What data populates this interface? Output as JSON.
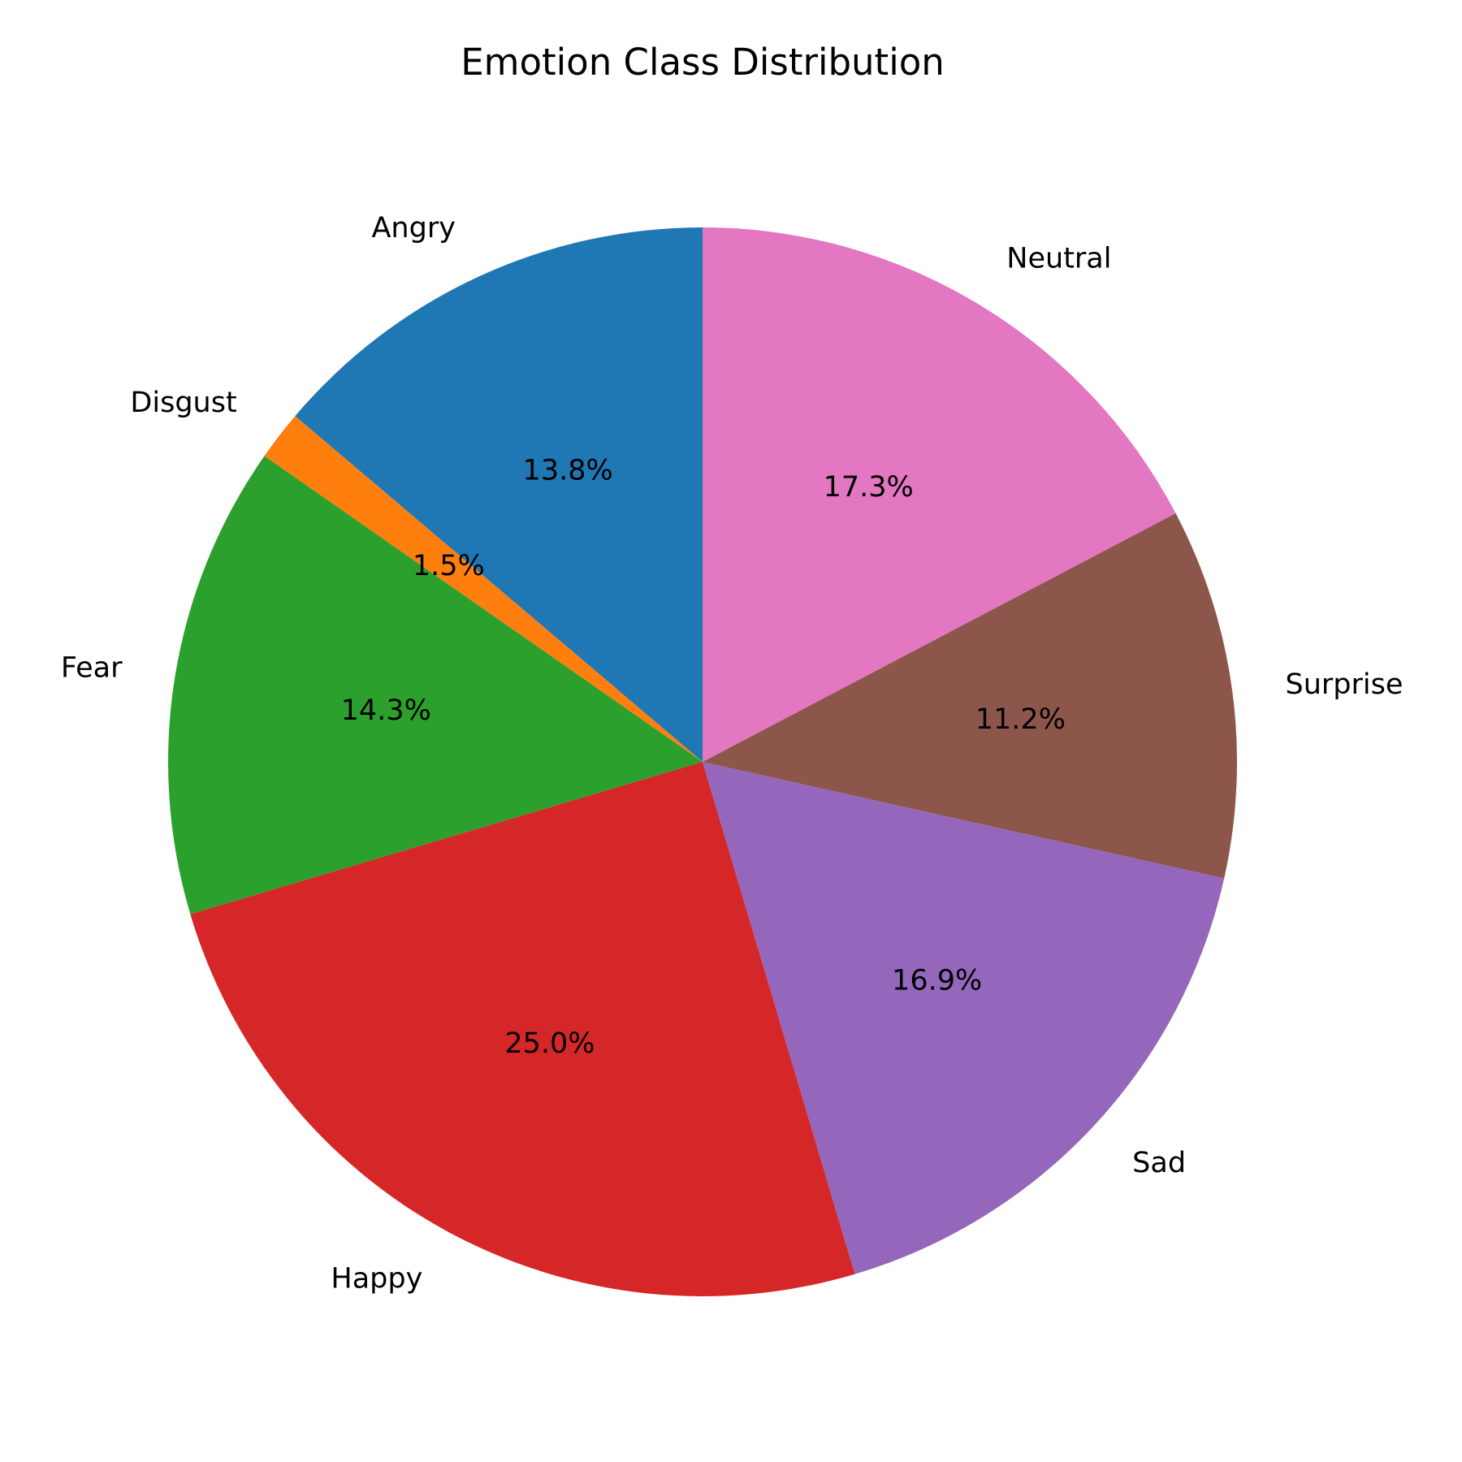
{
  "chart_data": {
    "type": "pie",
    "title": "Emotion Class Distribution",
    "start_angle_deg": 90,
    "direction": "counterclockwise",
    "slices": [
      {
        "label": "Angry",
        "value": 13.8,
        "pct_label": "13.8%",
        "color": "#1f77b4"
      },
      {
        "label": "Disgust",
        "value": 1.5,
        "pct_label": "1.5%",
        "color": "#ff7f0e"
      },
      {
        "label": "Fear",
        "value": 14.3,
        "pct_label": "14.3%",
        "color": "#2ca02c"
      },
      {
        "label": "Happy",
        "value": 25.0,
        "pct_label": "25.0%",
        "color": "#d62728"
      },
      {
        "label": "Sad",
        "value": 16.9,
        "pct_label": "16.9%",
        "color": "#9467bd"
      },
      {
        "label": "Surprise",
        "value": 11.2,
        "pct_label": "11.2%",
        "color": "#8c564b"
      },
      {
        "label": "Neutral",
        "value": 17.3,
        "pct_label": "17.3%",
        "color": "#e377c2"
      }
    ]
  }
}
